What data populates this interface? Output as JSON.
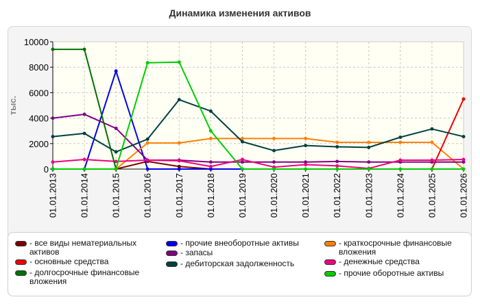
{
  "chart_data": {
    "type": "line",
    "title": "Динамика изменения активов",
    "ylabel": "тыс.",
    "xlabel": "",
    "ylim": [
      0,
      10000
    ],
    "yticks": [
      0,
      2000,
      4000,
      6000,
      8000,
      10000
    ],
    "grid": true,
    "legend_position": "bottom",
    "categories": [
      "01.01.2013",
      "01.01.2014",
      "01.01.2015",
      "01.01.2016",
      "01.01.2017",
      "01.01.2018",
      "01.01.2019",
      "01.01.2020",
      "01.01.2021",
      "01.01.2022",
      "01.01.2023",
      "01.01.2024",
      "01.01.2025",
      "01.01.2026"
    ],
    "series": [
      {
        "name": "- все виды нематериальных активов",
        "color": "#7a0000",
        "values": [
          0,
          0,
          0,
          600,
          200,
          0,
          null,
          null,
          null,
          null,
          null,
          null,
          null,
          null
        ]
      },
      {
        "name": "- прочие внеоборотные активы",
        "color": "#0000ee",
        "values": [
          0,
          0,
          7700,
          0,
          0,
          0,
          0,
          null,
          null,
          null,
          null,
          null,
          null,
          null
        ]
      },
      {
        "name": "- краткосрочные финансовые вложения",
        "color": "#ff8000",
        "values": [
          null,
          null,
          0,
          2050,
          2050,
          2400,
          2400,
          2400,
          2400,
          2100,
          2100,
          2100,
          2100,
          0
        ]
      },
      {
        "name": "- основные средства",
        "color": "#ee0000",
        "values": [
          null,
          null,
          null,
          null,
          null,
          null,
          null,
          null,
          null,
          null,
          null,
          null,
          0,
          5500
        ]
      },
      {
        "name": "- запасы",
        "color": "#800080",
        "values": [
          4000,
          4300,
          3200,
          700,
          700,
          550,
          550,
          550,
          550,
          600,
          550,
          550,
          550,
          550
        ]
      },
      {
        "name": "- денежные средства",
        "color": "#ee0080",
        "values": [
          550,
          750,
          600,
          700,
          650,
          200,
          750,
          150,
          350,
          250,
          50,
          700,
          700,
          750
        ]
      },
      {
        "name": "- долгосрочные финансовые вложения",
        "color": "#007000",
        "values": [
          9400,
          9400,
          0,
          null,
          null,
          null,
          null,
          null,
          null,
          null,
          null,
          null,
          null,
          null
        ]
      },
      {
        "name": "- дебиторская задолженность",
        "color": "#004040",
        "values": [
          2550,
          2800,
          1350,
          2350,
          5450,
          4550,
          2150,
          1450,
          1850,
          1750,
          1700,
          2500,
          3150,
          2550
        ]
      },
      {
        "name": "- прочие оборотные активы",
        "color": "#00cc00",
        "values": [
          0,
          0,
          0,
          8350,
          8400,
          3000,
          0,
          0,
          0,
          0,
          0,
          0,
          0,
          0
        ]
      }
    ]
  }
}
